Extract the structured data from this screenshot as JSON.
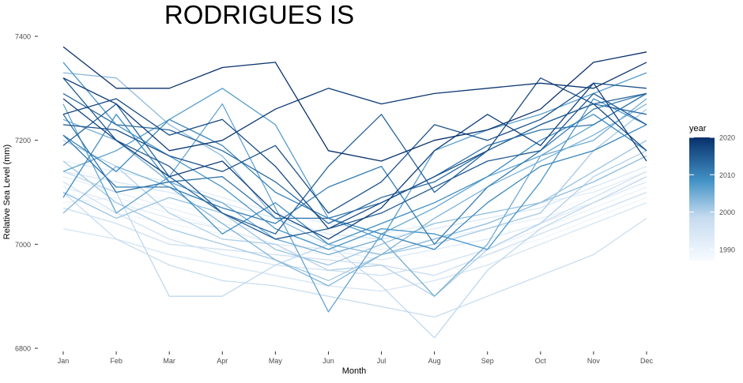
{
  "chart_data": {
    "type": "line",
    "title": "RODRIGUES IS",
    "xlabel": "Month",
    "ylabel": "Relative Sea Level (mm)",
    "categories": [
      "Jan",
      "Feb",
      "Mar",
      "Apr",
      "May",
      "Jun",
      "Jul",
      "Aug",
      "Sep",
      "Oct",
      "Nov",
      "Dec"
    ],
    "ylim": [
      6800,
      7400
    ],
    "yticks": [
      6800,
      7000,
      7200,
      7400
    ],
    "grid": false,
    "legend": {
      "title": "year",
      "placement": "right",
      "type": "colorbar",
      "min": 1987,
      "max": 2020,
      "ticks": [
        1990,
        2000,
        2010,
        2020
      ],
      "low_color": "#F7FBFF",
      "high_color": "#08306B"
    },
    "series": [
      {
        "year": 1987,
        "values": [
          7090,
          7110,
          7100,
          7070,
          7040,
          7025,
          6995,
          6975,
          7000,
          7020,
          7060,
          7100
        ]
      },
      {
        "year": 1988,
        "values": [
          7150,
          7120,
          7080,
          7050,
          7010,
          6990,
          6980,
          7000,
          7030,
          7060,
          7090,
          7130
        ]
      },
      {
        "year": 1989,
        "values": [
          7100,
          7060,
          7040,
          7020,
          6990,
          6980,
          6960,
          6940,
          6980,
          7010,
          7050,
          7090
        ]
      },
      {
        "year": 1990,
        "values": [
          7080,
          7090,
          7060,
          7030,
          7000,
          6950,
          6940,
          6960,
          6990,
          7030,
          7070,
          7110
        ]
      },
      {
        "year": 1991,
        "values": [
          7130,
          7100,
          7070,
          7040,
          7020,
          7000,
          6990,
          7010,
          7030,
          7050,
          7080,
          7120
        ]
      },
      {
        "year": 1992,
        "values": [
          7160,
          7140,
          7120,
          7090,
          7060,
          7040,
          7020,
          7040,
          7060,
          7080,
          7100,
          7140
        ]
      },
      {
        "year": 1993,
        "values": [
          7110,
          7080,
          7050,
          7030,
          7000,
          6990,
          6970,
          6990,
          7010,
          7040,
          7080,
          7120
        ]
      },
      {
        "year": 1994,
        "values": [
          7140,
          7120,
          7100,
          7080,
          7050,
          7020,
          7010,
          7030,
          7050,
          7070,
          7110,
          7150
        ]
      },
      {
        "year": 1995,
        "values": [
          7030,
          7010,
          6980,
          6960,
          6940,
          6920,
          6910,
          6930,
          6960,
          7000,
          7040,
          7080
        ]
      },
      {
        "year": 1996,
        "values": [
          7120,
          7060,
          7010,
          6980,
          6960,
          6950,
          6940,
          6960,
          6990,
          7040,
          7090,
          7140
        ]
      },
      {
        "year": 1997,
        "values": [
          7070,
          7040,
          7000,
          6990,
          6980,
          6970,
          6960,
          6940,
          6980,
          7020,
          7060,
          7100
        ]
      },
      {
        "year": 1998,
        "values": [
          7100,
          7010,
          6960,
          6930,
          6920,
          6900,
          6880,
          6860,
          6900,
          6940,
          6980,
          7050
        ]
      },
      {
        "year": 1999,
        "values": [
          7140,
          7100,
          6900,
          6900,
          6960,
          7000,
          6920,
          6820,
          6950,
          7030,
          7080,
          7130
        ]
      },
      {
        "year": 2000,
        "values": [
          7200,
          7150,
          7060,
          7010,
          7000,
          6950,
          6960,
          6900,
          6990,
          7040,
          7130,
          7180
        ]
      },
      {
        "year": 2001,
        "values": [
          7160,
          7080,
          7030,
          7000,
          6970,
          6930,
          6980,
          7000,
          7030,
          7060,
          7180,
          7260
        ]
      },
      {
        "year": 2002,
        "values": [
          7100,
          7050,
          7090,
          7060,
          6990,
          6960,
          7000,
          7040,
          7060,
          7080,
          7140,
          7200
        ]
      },
      {
        "year": 2003,
        "values": [
          7330,
          7320,
          7230,
          7170,
          7050,
          7000,
          6980,
          7010,
          7040,
          7080,
          7120,
          7170
        ]
      },
      {
        "year": 2004,
        "values": [
          7060,
          7150,
          7110,
          7040,
          6970,
          6920,
          6980,
          7050,
          7110,
          7160,
          7210,
          7270
        ]
      },
      {
        "year": 2005,
        "values": [
          7240,
          7200,
          7120,
          7080,
          7010,
          6980,
          7010,
          6900,
          7000,
          7170,
          7200,
          7280
        ]
      },
      {
        "year": 2006,
        "values": [
          7270,
          7060,
          7130,
          7270,
          7070,
          6870,
          7020,
          7070,
          7130,
          7170,
          7230,
          7290
        ]
      },
      {
        "year": 2007,
        "values": [
          7140,
          7180,
          7240,
          7300,
          7230,
          7050,
          7010,
          7180,
          7220,
          7250,
          7290,
          7330
        ]
      },
      {
        "year": 2008,
        "values": [
          7350,
          7230,
          7170,
          7110,
          7030,
          6990,
          7030,
          7020,
          6990,
          7120,
          7280,
          7230
        ]
      },
      {
        "year": 2009,
        "values": [
          7090,
          7250,
          7120,
          7020,
          7080,
          7000,
          7040,
          7080,
          7130,
          7200,
          7250,
          7180
        ]
      },
      {
        "year": 2010,
        "values": [
          7210,
          7140,
          7240,
          7190,
          7100,
          7050,
          7020,
          6990,
          7080,
          7150,
          7180,
          7230
        ]
      },
      {
        "year": 2011,
        "values": [
          7210,
          7110,
          7110,
          7070,
          7040,
          7110,
          7150,
          7000,
          7110,
          7180,
          7260,
          7290
        ]
      },
      {
        "year": 2012,
        "values": [
          7250,
          7100,
          7120,
          7130,
          7050,
          7050,
          7080,
          7130,
          7190,
          7220,
          7230,
          7290
        ]
      },
      {
        "year": 2013,
        "values": [
          7290,
          7230,
          7220,
          7180,
          7120,
          7040,
          7090,
          7120,
          7180,
          7230,
          7270,
          7250
        ]
      },
      {
        "year": 2014,
        "values": [
          7190,
          7270,
          7130,
          7060,
          7020,
          7150,
          7250,
          7100,
          7180,
          7230,
          7270,
          7290
        ]
      },
      {
        "year": 2015,
        "values": [
          7320,
          7200,
          7150,
          7060,
          7010,
          7030,
          7060,
          7110,
          7160,
          7180,
          7290,
          7230
        ]
      },
      {
        "year": 2016,
        "values": [
          7230,
          7220,
          7170,
          7140,
          7190,
          7060,
          7120,
          7230,
          7200,
          7240,
          7310,
          7300
        ]
      },
      {
        "year": 2017,
        "values": [
          7250,
          7280,
          7210,
          7240,
          7150,
          7030,
          7080,
          7130,
          7180,
          7320,
          7270,
          7180
        ]
      },
      {
        "year": 2018,
        "values": [
          7280,
          7200,
          7130,
          7160,
          7060,
          7010,
          7070,
          7180,
          7250,
          7190,
          7310,
          7160
        ]
      },
      {
        "year": 2019,
        "values": [
          7320,
          7270,
          7180,
          7200,
          7260,
          7300,
          7270,
          7290,
          7300,
          7310,
          7300,
          7350
        ]
      },
      {
        "year": 2020,
        "values": [
          7380,
          7300,
          7300,
          7340,
          7350,
          7180,
          7160,
          7200,
          7220,
          7260,
          7350,
          7370
        ]
      }
    ]
  }
}
